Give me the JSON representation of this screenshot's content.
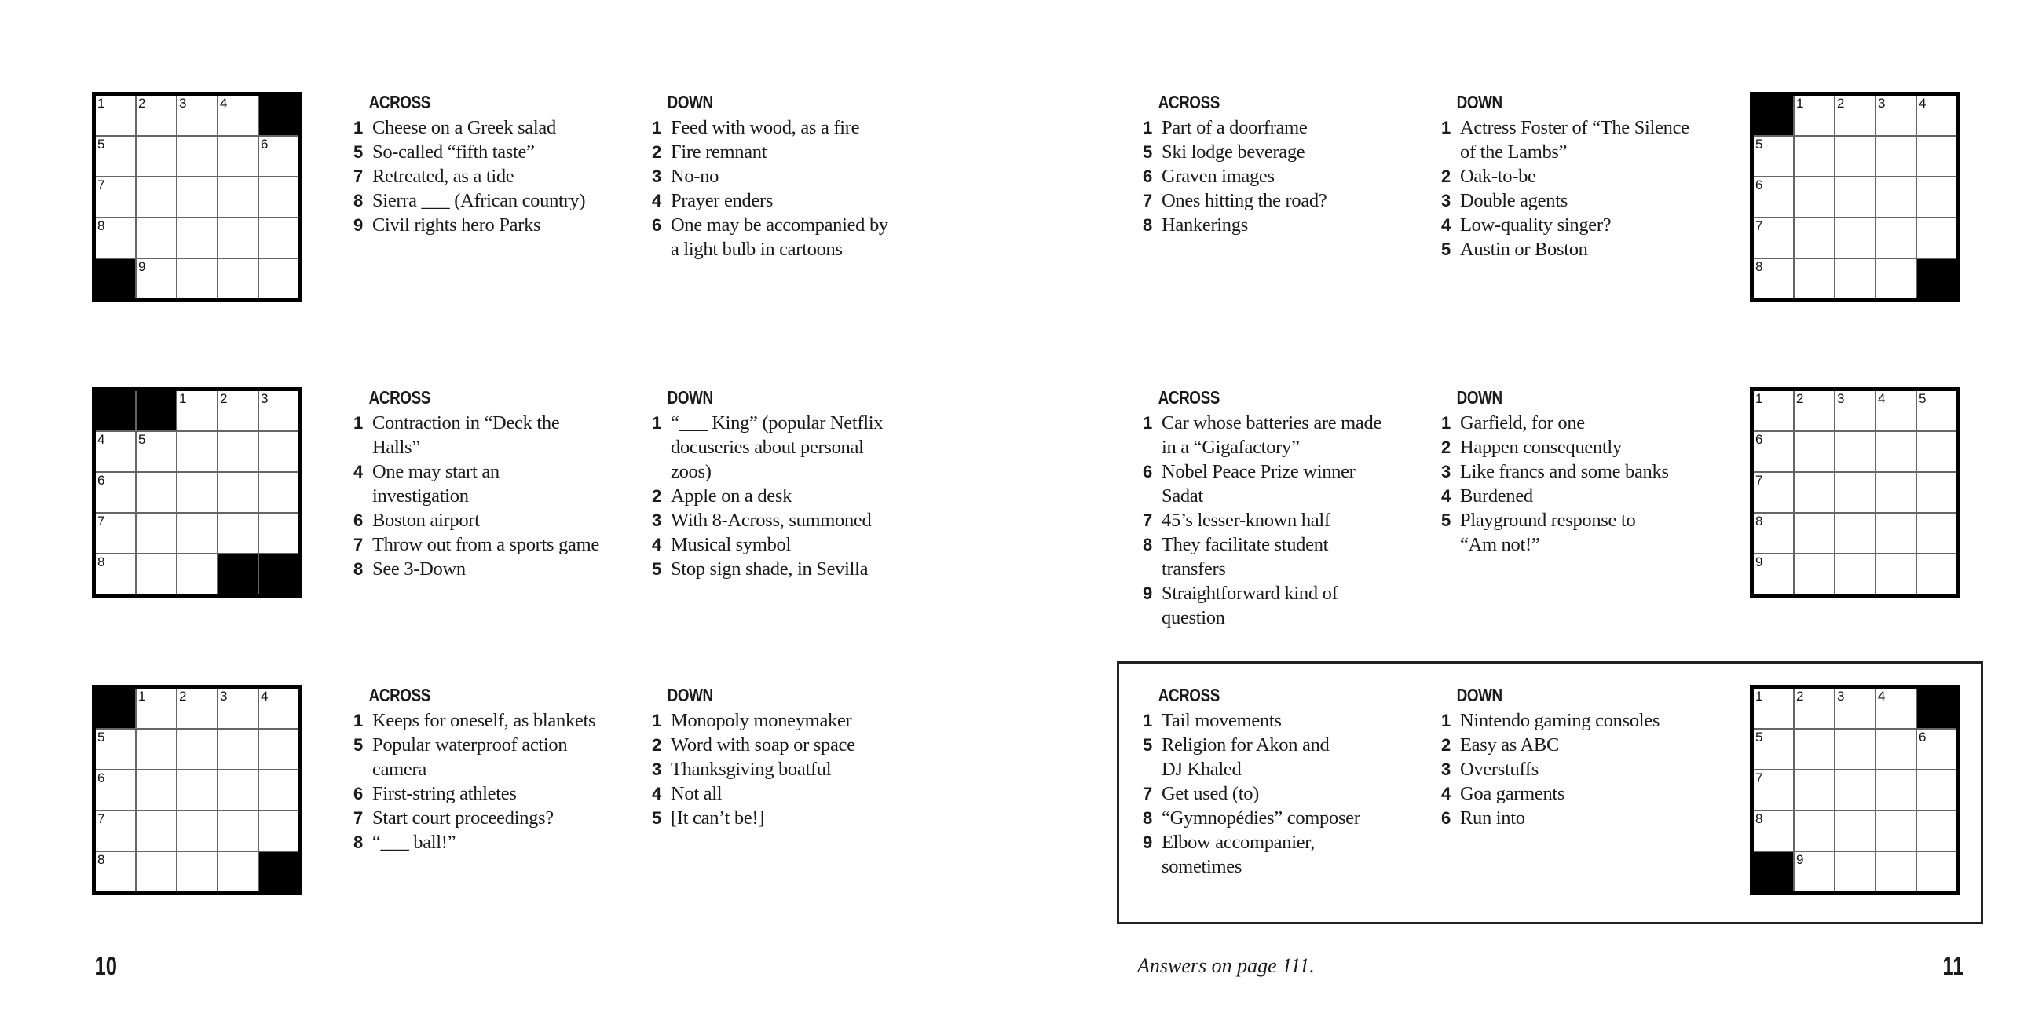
{
  "labels": {
    "across": "ACROSS",
    "down": "DOWN"
  },
  "footer": {
    "left_page": "10",
    "right_page": "11",
    "answers_note": "Answers on page 111."
  },
  "puzzles": [
    {
      "grid": [
        [
          "1",
          "2",
          "3",
          "4",
          "#"
        ],
        [
          "5",
          "",
          "",
          "",
          "6"
        ],
        [
          "7",
          "",
          "",
          "",
          ""
        ],
        [
          "8",
          "",
          "",
          "",
          ""
        ],
        [
          "#",
          "9",
          "",
          "",
          ""
        ]
      ],
      "across": [
        {
          "n": "1",
          "t": "Cheese on a Greek salad"
        },
        {
          "n": "5",
          "t": "So-called “fifth taste”"
        },
        {
          "n": "7",
          "t": "Retreated, as a tide"
        },
        {
          "n": "8",
          "t": "Sierra ___ (African country)"
        },
        {
          "n": "9",
          "t": "Civil rights hero Parks"
        }
      ],
      "down": [
        {
          "n": "1",
          "t": "Feed with wood, as a fire"
        },
        {
          "n": "2",
          "t": "Fire remnant"
        },
        {
          "n": "3",
          "t": "No-no"
        },
        {
          "n": "4",
          "t": "Prayer enders"
        },
        {
          "n": "6",
          "t": "One may be accompanied by\na light bulb in cartoons"
        }
      ]
    },
    {
      "grid": [
        [
          "#",
          "#",
          "1",
          "2",
          "3"
        ],
        [
          "4",
          "5",
          "",
          "",
          ""
        ],
        [
          "6",
          "",
          "",
          "",
          ""
        ],
        [
          "7",
          "",
          "",
          "",
          ""
        ],
        [
          "8",
          "",
          "",
          "#",
          "#"
        ]
      ],
      "across": [
        {
          "n": "1",
          "t": "Contraction in “Deck the\nHalls”"
        },
        {
          "n": "4",
          "t": "One may start an\ninvestigation"
        },
        {
          "n": "6",
          "t": "Boston airport"
        },
        {
          "n": "7",
          "t": "Throw out from a sports game"
        },
        {
          "n": "8",
          "t": "See 3-Down"
        }
      ],
      "down": [
        {
          "n": "1",
          "t": "“___ King” (popular Netflix\ndocuseries about personal\nzoos)"
        },
        {
          "n": "2",
          "t": "Apple on a desk"
        },
        {
          "n": "3",
          "t": "With 8-Across, summoned"
        },
        {
          "n": "4",
          "t": "Musical symbol"
        },
        {
          "n": "5",
          "t": "Stop sign shade, in Sevilla"
        }
      ]
    },
    {
      "grid": [
        [
          "#",
          "1",
          "2",
          "3",
          "4"
        ],
        [
          "5",
          "",
          "",
          "",
          ""
        ],
        [
          "6",
          "",
          "",
          "",
          ""
        ],
        [
          "7",
          "",
          "",
          "",
          ""
        ],
        [
          "8",
          "",
          "",
          "",
          "#"
        ]
      ],
      "across": [
        {
          "n": "1",
          "t": "Keeps for oneself, as blankets"
        },
        {
          "n": "5",
          "t": "Popular waterproof action\ncamera"
        },
        {
          "n": "6",
          "t": "First-string athletes"
        },
        {
          "n": "7",
          "t": "Start court proceedings?"
        },
        {
          "n": "8",
          "t": "“___ ball!”"
        }
      ],
      "down": [
        {
          "n": "1",
          "t": "Monopoly moneymaker"
        },
        {
          "n": "2",
          "t": "Word with soap or space"
        },
        {
          "n": "3",
          "t": "Thanksgiving boatful"
        },
        {
          "n": "4",
          "t": "Not all"
        },
        {
          "n": "5",
          "t": "[It can’t be!]"
        }
      ]
    },
    {
      "grid": [
        [
          "#",
          "1",
          "2",
          "3",
          "4"
        ],
        [
          "5",
          "",
          "",
          "",
          ""
        ],
        [
          "6",
          "",
          "",
          "",
          ""
        ],
        [
          "7",
          "",
          "",
          "",
          ""
        ],
        [
          "8",
          "",
          "",
          "",
          "#"
        ]
      ],
      "across": [
        {
          "n": "1",
          "t": "Part of a doorframe"
        },
        {
          "n": "5",
          "t": "Ski lodge beverage"
        },
        {
          "n": "6",
          "t": "Graven images"
        },
        {
          "n": "7",
          "t": "Ones hitting the road?"
        },
        {
          "n": "8",
          "t": "Hankerings"
        }
      ],
      "down": [
        {
          "n": "1",
          "t": "Actress Foster of “The Silence\nof the Lambs”"
        },
        {
          "n": "2",
          "t": "Oak-to-be"
        },
        {
          "n": "3",
          "t": "Double agents"
        },
        {
          "n": "4",
          "t": "Low-quality singer?"
        },
        {
          "n": "5",
          "t": "Austin or Boston"
        }
      ]
    },
    {
      "grid": [
        [
          "1",
          "2",
          "3",
          "4",
          "5"
        ],
        [
          "6",
          "",
          "",
          "",
          ""
        ],
        [
          "7",
          "",
          "",
          "",
          ""
        ],
        [
          "8",
          "",
          "",
          "",
          ""
        ],
        [
          "9",
          "",
          "",
          "",
          ""
        ]
      ],
      "across": [
        {
          "n": "1",
          "t": "Car whose batteries are made\nin a “Gigafactory”"
        },
        {
          "n": "6",
          "t": "Nobel Peace Prize winner\nSadat"
        },
        {
          "n": "7",
          "t": "45’s lesser-known half"
        },
        {
          "n": "8",
          "t": "They facilitate student\ntransfers"
        },
        {
          "n": "9",
          "t": "Straightforward kind of\nquestion"
        }
      ],
      "down": [
        {
          "n": "1",
          "t": "Garfield, for one"
        },
        {
          "n": "2",
          "t": "Happen consequently"
        },
        {
          "n": "3",
          "t": "Like francs and some banks"
        },
        {
          "n": "4",
          "t": "Burdened"
        },
        {
          "n": "5",
          "t": "Playground response to\n“Am not!”"
        }
      ]
    },
    {
      "grid": [
        [
          "1",
          "2",
          "3",
          "4",
          "#"
        ],
        [
          "5",
          "",
          "",
          "",
          "6"
        ],
        [
          "7",
          "",
          "",
          "",
          ""
        ],
        [
          "8",
          "",
          "",
          "",
          ""
        ],
        [
          "#",
          "9",
          "",
          "",
          ""
        ]
      ],
      "across": [
        {
          "n": "1",
          "t": "Tail movements"
        },
        {
          "n": "5",
          "t": "Religion for Akon and\nDJ Khaled"
        },
        {
          "n": "7",
          "t": "Get used (to)"
        },
        {
          "n": "8",
          "t": "“Gymnopédies” composer"
        },
        {
          "n": "9",
          "t": "Elbow accompanier,\nsometimes"
        }
      ],
      "down": [
        {
          "n": "1",
          "t": "Nintendo gaming consoles"
        },
        {
          "n": "2",
          "t": "Easy as ABC"
        },
        {
          "n": "3",
          "t": "Overstuffs"
        },
        {
          "n": "4",
          "t": "Goa garments"
        },
        {
          "n": "6",
          "t": "Run into"
        }
      ]
    }
  ]
}
